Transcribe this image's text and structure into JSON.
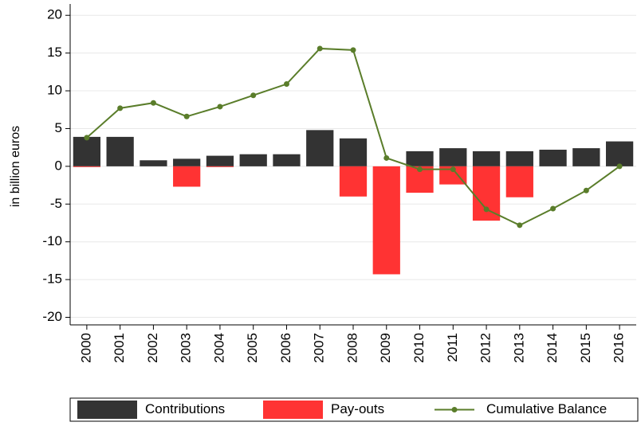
{
  "chart_data": {
    "type": "bar",
    "y_label": "in billion euros",
    "categories": [
      "2000",
      "2001",
      "2002",
      "2003",
      "2004",
      "2005",
      "2006",
      "2007",
      "2008",
      "2009",
      "2010",
      "2011",
      "2012",
      "2013",
      "2014",
      "2015",
      "2016"
    ],
    "series": [
      {
        "name": "Contributions",
        "color": "#333333",
        "type": "bar",
        "values": [
          3.9,
          3.9,
          0.8,
          1.0,
          1.4,
          1.6,
          1.6,
          4.8,
          3.7,
          0,
          2.0,
          2.4,
          2.0,
          2.0,
          2.2,
          2.4,
          3.3
        ]
      },
      {
        "name": "Pay-outs",
        "color": "#ff3333",
        "type": "bar",
        "values": [
          -0.1,
          0,
          0,
          -2.7,
          -0.1,
          0,
          0,
          0,
          -4.0,
          -14.3,
          -3.5,
          -2.4,
          -7.2,
          -4.1,
          0,
          0,
          0
        ]
      },
      {
        "name": "Cumulative Balance",
        "color": "#5a7d2a",
        "type": "line",
        "values": [
          3.8,
          7.7,
          8.4,
          6.6,
          7.9,
          9.4,
          10.9,
          15.6,
          15.4,
          1.1,
          -0.4,
          -0.4,
          -5.7,
          -7.8,
          -5.6,
          -3.2,
          0.0
        ]
      }
    ],
    "ylim": [
      -21,
      21.5
    ],
    "yticks": [
      -20,
      -15,
      -10,
      -5,
      0,
      5,
      10,
      15,
      20
    ],
    "grid": true,
    "legend": "bottom"
  }
}
